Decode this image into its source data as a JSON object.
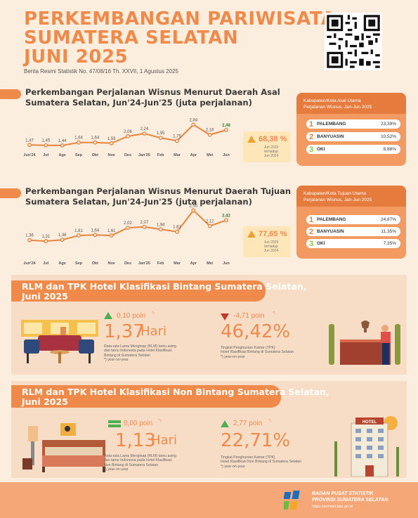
{
  "header": {
    "title_lines": [
      "PERKEMBANGAN PARIWISATA",
      "SUMATERA SELATAN",
      "JUNI 2025"
    ],
    "release": "Berita Resmi Statistik No. 47/08/16 Th. XXVII, 1 Agustus 2025"
  },
  "section_asal": {
    "title_line1": "Perkembangan Perjalanan Wisnus Menurut Daerah Asal",
    "title_line2": "Sumatera Selatan, Jun'24-Jun'25 (juta perjalanan)",
    "change": "68,38 %",
    "change_note": [
      "Jun 2025",
      "terhadap",
      "Jun 2024"
    ],
    "rank_title": [
      "Kabupaten/Kota Asal Utama",
      "Perjalanan Wisnus, Jan-Jun 2025"
    ],
    "ranks": [
      {
        "num": "1",
        "name": "PALEMBANG",
        "pct": "23,39%"
      },
      {
        "num": "2",
        "name": "BANYUASIN",
        "pct": "10,52%"
      },
      {
        "num": "3",
        "name": "OKI",
        "pct": "8,88%"
      }
    ]
  },
  "section_tujuan": {
    "title_line1": "Perkembangan Perjalanan Wisnus Menurut Daerah Tujuan",
    "title_line2": "Sumatera Selatan, Jun'24-Jun'25 (juta perjalanan)",
    "change": "77,65 %",
    "change_note": [
      "Jun 2025",
      "terhadap",
      "Jun 2024"
    ],
    "rank_title": [
      "Kabupaten/Kota Tujuan Utama",
      "Perjalanan Wisnus, Jan-Jun 2025"
    ],
    "ranks": [
      {
        "num": "1",
        "name": "PALEMBANG",
        "pct": "24,87%"
      },
      {
        "num": "2",
        "name": "BANYUASIN",
        "pct": "11,35%"
      },
      {
        "num": "3",
        "name": "OKI",
        "pct": "7,35%"
      }
    ]
  },
  "chart_data": [
    {
      "type": "line",
      "categories": [
        "Jun'24",
        "Jul",
        "Ags",
        "Sep",
        "Okt",
        "Nov",
        "Des",
        "Jan'25",
        "Feb",
        "Mar",
        "Apr",
        "Mei",
        "Jun"
      ],
      "values": [
        1.47,
        1.45,
        1.44,
        1.64,
        1.64,
        1.59,
        2.06,
        2.24,
        1.95,
        1.75,
        2.84,
        2.16,
        2.48
      ],
      "labels": [
        "1,47",
        "1,45",
        "1,44",
        "1,64",
        "1,64",
        "1,59",
        "2,06",
        "2,24",
        "1,95",
        "1,75",
        "2,84",
        "2,16",
        "2,48"
      ],
      "color": "#e8843e"
    },
    {
      "type": "line",
      "categories": [
        "Jun'24",
        "Jul",
        "Ags",
        "Sep",
        "Okt",
        "Nov",
        "Des",
        "Jan'25",
        "Feb",
        "Mar",
        "Apr",
        "Mei",
        "Jun"
      ],
      "values": [
        1.36,
        1.31,
        1.38,
        1.61,
        1.64,
        1.61,
        2.02,
        2.07,
        1.94,
        1.81,
        2.95,
        2.12,
        2.42
      ],
      "labels": [
        "1,36",
        "1,31",
        "1,38",
        "1,61",
        "1,64",
        "1,61",
        "2,02",
        "2,07",
        "1,94",
        "1,81",
        "2,95",
        "2,12",
        "2,42"
      ],
      "color": "#e8843e"
    }
  ],
  "hotel_bintang": {
    "head_line1": "RLM dan TPK Hotel Klasifikasi Bintang Sumatera Selatan,",
    "head_line2": "Juni 2025",
    "rlm_change": "0,10 poin",
    "rlm_sup": "*)",
    "rlm_value": "1,37",
    "rlm_unit": "Hari",
    "rlm_desc": [
      "Rata-rata Lama Menginap (RLM) tamu asing",
      "dan tamu Indonesia pada Hotel Klasifikasi",
      "Bintang di Sumatera Selatan",
      "*) year-on-year"
    ],
    "tpk_change": "-4,71 poin",
    "tpk_sup": "*)",
    "tpk_value": "46,42%",
    "tpk_desc": [
      "Tingkat Penghunian Kamar (TPK)",
      "Hotel Klasifikasi Bintang di Sumatera Selatan",
      "*) year-on-year"
    ]
  },
  "hotel_nonbintang": {
    "head_line1": "RLM dan TPK Hotel Klasifikasi Non Bintang Sumatera Selatan,",
    "head_line2": "Juni 2025",
    "rlm_change": "0,00 poin",
    "rlm_sup": "*)",
    "rlm_value": "1,13",
    "rlm_unit": "Hari",
    "rlm_desc": [
      "Rata-rata Lama Menginap (RLM) tamu asing",
      "dan tamu Indonesia pada Hotel Klasifikasi",
      "Non Bintang di Sumatera Selatan",
      "*) year-on-year"
    ],
    "tpk_change": "2,77 poin",
    "tpk_sup": "*)",
    "tpk_value": "22,71%",
    "tpk_desc": [
      "Tingkat Penghunian Kamar (TPK)",
      "Hotel Klasifikasi Non Bintang di Sumatera Selatan",
      "*) year-on-year"
    ],
    "hotel_sign": "HOTEL"
  },
  "footer": {
    "org_line1": "BADAN PUSAT STATISTIK",
    "org_line2": "PROVINSI SUMATERA SELATAN",
    "url": "https://sumsel.bps.go.id"
  },
  "colors": {
    "accent": "#f08a4b",
    "up": "#4caf50",
    "down": "#c0392b",
    "panel": "#f7dcc6"
  }
}
